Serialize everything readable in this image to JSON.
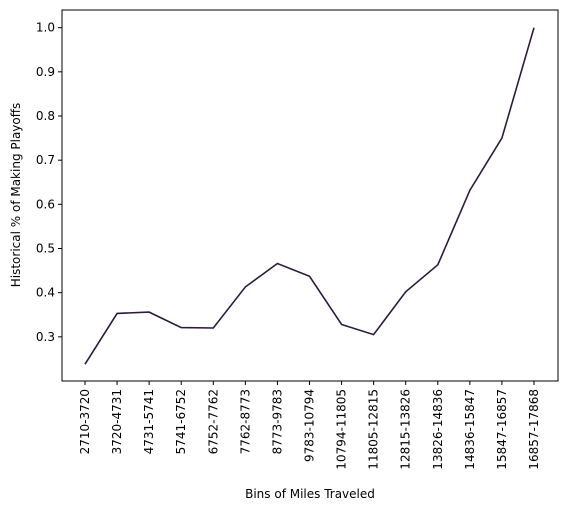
{
  "chart_data": {
    "type": "line",
    "xlabel": "Bins of Miles Traveled",
    "ylabel": "Historical % of Making Playoffs",
    "categories": [
      "2710-3720",
      "3720-4731",
      "4731-5741",
      "5741-6752",
      "6752-7762",
      "7762-8773",
      "8773-9783",
      "9783-10794",
      "10794-11805",
      "11805-12815",
      "12815-13826",
      "13826-14836",
      "14836-15847",
      "15847-16857",
      "16857-17868"
    ],
    "series": [
      {
        "values": [
          0.238,
          0.353,
          0.356,
          0.321,
          0.32,
          0.413,
          0.466,
          0.437,
          0.328,
          0.305,
          0.402,
          0.463,
          0.632,
          0.75,
          1.0
        ]
      }
    ],
    "yticks": [
      0.3,
      0.4,
      0.5,
      0.6,
      0.7,
      0.8,
      0.9,
      1.0
    ],
    "yticklabels": [
      "0.3",
      "0.4",
      "0.5",
      "0.6",
      "0.7",
      "0.8",
      "0.9",
      "1.0"
    ],
    "ylim": [
      0.2,
      1.04
    ],
    "grid": false,
    "line_color": "#2d1a3c"
  }
}
